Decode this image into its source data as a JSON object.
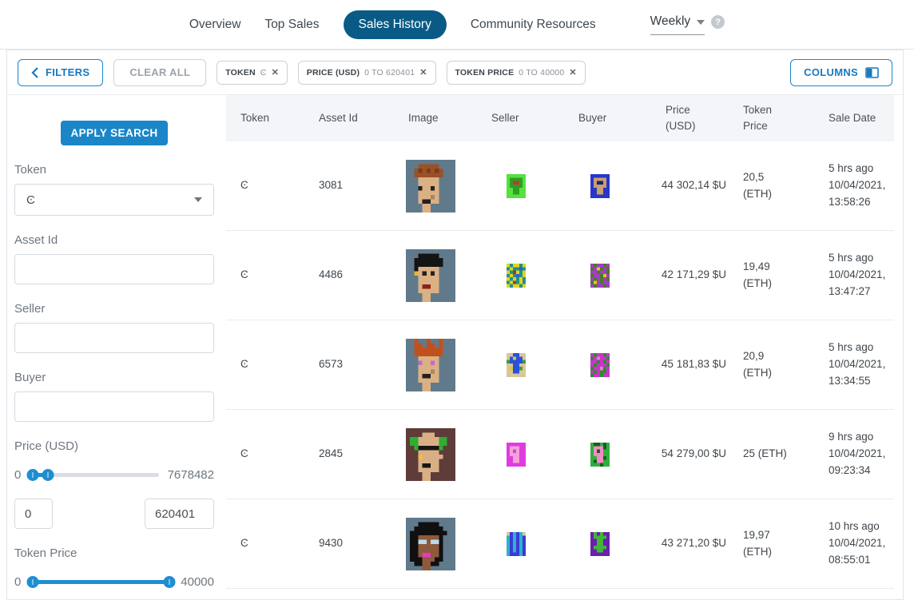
{
  "colors": {
    "accent_blue": "#1a86c8",
    "nav_active_bg": "#095b86",
    "slider_fill": "#1e8ed1",
    "table_header_bg": "#f3f5f9",
    "chip_border": "#ccd1d7"
  },
  "nav": {
    "items": [
      "Overview",
      "Top Sales",
      "Sales History",
      "Community Resources"
    ],
    "active_item": "Sales History",
    "period_label": "Weekly",
    "help_label": "?"
  },
  "toolbar": {
    "filters": "FILTERS",
    "clear_all": "CLEAR ALL",
    "columns": "COLUMNS",
    "chips": [
      {
        "label": "TOKEN",
        "value": "Ͼ",
        "close": "✕"
      },
      {
        "label": "PRICE (USD)",
        "value": "0 TO 620401",
        "close": "✕"
      },
      {
        "label": "TOKEN PRICE",
        "value": "0 TO 40000",
        "close": "✕"
      }
    ]
  },
  "sidebar": {
    "apply": "APPLY SEARCH",
    "token": {
      "label": "Token",
      "value": "Ͼ"
    },
    "asset_id": {
      "label": "Asset Id",
      "value": ""
    },
    "seller": {
      "label": "Seller",
      "value": ""
    },
    "buyer": {
      "label": "Buyer",
      "value": ""
    },
    "price_usd": {
      "label": "Price (USD)",
      "min": "0",
      "max": "7678482",
      "from": "0",
      "to": "620401"
    },
    "token_price": {
      "label": "Token Price",
      "min": "0",
      "max": "40000"
    }
  },
  "table": {
    "headers": [
      "Token",
      "Asset Id",
      "Image",
      "Seller",
      "Buyer",
      "Price (USD)",
      "Token Price",
      "Sale Date"
    ],
    "rows": [
      {
        "token": "Ͼ",
        "asset_id": "3081",
        "price_usd": "44 302,14 $U",
        "token_price": "20,5 (ETH)",
        "sale_date": "5 hrs ago 10/04/2021, 13:58:26"
      },
      {
        "token": "Ͼ",
        "asset_id": "4486",
        "price_usd": "42 171,29 $U",
        "token_price": "19,49 (ETH)",
        "sale_date": "5 hrs ago 10/04/2021, 13:47:27"
      },
      {
        "token": "Ͼ",
        "asset_id": "6573",
        "price_usd": "45 181,83 $U",
        "token_price": "20,9 (ETH)",
        "sale_date": "5 hrs ago 10/04/2021, 13:34:55"
      },
      {
        "token": "Ͼ",
        "asset_id": "2845",
        "price_usd": "54 279,00 $U",
        "token_price": "25 (ETH)",
        "sale_date": "9 hrs ago 10/04/2021, 09:23:34"
      },
      {
        "token": "Ͼ",
        "asset_id": "9430",
        "price_usd": "43 271,20 $U",
        "token_price": "19,97 (ETH)",
        "sale_date": "10 hrs ago 10/04/2021, 08:55:01"
      }
    ]
  },
  "art": {
    "punk_3081": {
      "palette": {
        "b": "#607a8c",
        "o": "#9a5126",
        "d": "#7c3c1a",
        "s": "#dbb184",
        "k": "#232020",
        "n": "#a9875f"
      },
      "rows": [
        "bbbbbbbbbbbb",
        "bbbooooobbbb",
        "bbodododobbb",
        "bbooooooobbb",
        "bbbsssssbbbb",
        "bbbsssssbbbb",
        "bbbkssksbbbb",
        "bbbsssssbbbb",
        "bbbsssnsbbbb",
        "bbbskkssbbbb",
        "bbbbssbbbbbb",
        "bbbbssbbbbbb"
      ]
    },
    "punk_4486": {
      "palette": {
        "b": "#607a8c",
        "h": "#141414",
        "s": "#dbb184",
        "r": "#8e2218",
        "g": "#e0b63a",
        "k": "#232020"
      },
      "rows": [
        "bbbbbbbbbbbb",
        "bbbhhhhhbbbb",
        "bbhhhhhhhbbb",
        "bbhhhhhhhbbb",
        "bbhsssssbbbb",
        "bbgsksksbbbb",
        "bbbsssssbbbb",
        "bbbsssssbbbb",
        "bbbsrrssbbbb",
        "bbbsssssbbbb",
        "bbbbssbbbbbb",
        "bbbbssbbbbbb"
      ]
    },
    "punk_6573": {
      "palette": {
        "b": "#607a8c",
        "o": "#c0511f",
        "s": "#dbb184",
        "p": "#c469c9",
        "k": "#232020",
        "n": "#a9875f"
      },
      "rows": [
        "bbobbobbobbb",
        "bbooboobobbb",
        "bbooooooobbb",
        "bbooooooobbb",
        "bbbsssssbbbb",
        "bbbpsspsbbbb",
        "bbbsssssbbbb",
        "bbbsssnsbbbb",
        "bbbskkssbbbb",
        "bbbsssssbbbb",
        "bbbbssbbbbbb",
        "bbbbssbbbbbb"
      ]
    },
    "punk_2845": {
      "palette": {
        "m": "#5e3c3a",
        "g": "#2fae2f",
        "s": "#d9b085",
        "k": "#161616",
        "y": "#e8c33a"
      },
      "rows": [
        "mmmmmmmmmmmm",
        "mmmmsssmmmmm",
        "mggsssssggmm",
        "mggsssssggmm",
        "mmgkkkkkgmmm",
        "mmmsssssmmmm",
        "mmmysssssmmm",
        "mmmsssssmmmm",
        "mmmskkssmmmm",
        "mmmsssssmmmm",
        "mmmmssmmmmmm",
        "mmmmssmmmmmm"
      ]
    },
    "punk_9430": {
      "palette": {
        "b": "#607a8c",
        "h": "#101010",
        "f": "#8d5a3c",
        "e": "#b8dcea",
        "p": "#e23bc8"
      },
      "rows": [
        "bbbbbbbbbbbb",
        "bbbhhhhhbbbb",
        "bbhhhhhhhbbb",
        "bhhhhhhhhhbb",
        "bhhfffffhbbb",
        "bhheefeehbbb",
        "bhhfffffhbbb",
        "bhhfffffhbbb",
        "bhhfppffhbbb",
        "bhhhfffhhbbb",
        "bbhhffhhbbbb",
        "bbbbffbbbbbb"
      ]
    },
    "seller_1": {
      "palette": {
        "a": "#55e23c",
        "d": "#2f9e28",
        "r": "#c03a28"
      },
      "rows": [
        "aaaaaa",
        "adddda",
        "adrrda",
        "adddda",
        "aaddaa",
        "aaddaa",
        "aaaaaa"
      ]
    },
    "buyer_1": {
      "palette": {
        "u": "#2a35cc",
        "t": "#c9a06a",
        "d": "#18217e"
      },
      "rows": [
        "uuuuuu",
        "uttttu",
        "utddtu",
        "uttttu",
        "uuttuu",
        "uuttuu",
        "uuuuuu"
      ]
    },
    "seller_2": {
      "palette": {
        "y": "#ded61f",
        "c": "#23908e",
        "r": "#b33030",
        "u": "#2a62c9"
      },
      "rows": [
        "ycyycy",
        "cyccuc",
        "ycrycy",
        "cycucy",
        "ycycyc",
        "cyrcyc",
        "ycyycy"
      ]
    },
    "buyer_2": {
      "palette": {
        "p": "#a63bc9",
        "g": "#4a7a22",
        "y": "#d6c92e"
      },
      "rows": [
        "pgppgp",
        "gpygpg",
        "ppgppg",
        "gppgyp",
        "pgpgpg",
        "gypgpp",
        "pgppgp"
      ]
    },
    "seller_3": {
      "palette": {
        "t": "#d9c79a",
        "u": "#2a52d9",
        "g": "#3a9e3a",
        "y": "#ddc83a"
      },
      "rows": [
        "ttuutt",
        "tuyuut",
        "guuuug",
        "ttuutt",
        "tyuugt",
        "ttuutt",
        "tttttt"
      ]
    },
    "buyer_3": {
      "palette": {
        "m": "#cc33cc",
        "g": "#2f8a2f",
        "p": "#e87cc9"
      },
      "rows": [
        "mgmmgm",
        "gmpmmg",
        "mmgmgm",
        "mgmmmg",
        "gmmpgm",
        "mgmggm",
        "gmmgmm"
      ]
    },
    "seller_4": {
      "palette": {
        "m": "#e03be0",
        "p": "#f2a3d5"
      },
      "rows": [
        "mmmmmm",
        "mpppmm",
        "mpmpmm",
        "mpppmm",
        "mmppmm",
        "mmppmm",
        "mmmmmm"
      ]
    },
    "buyer_4": {
      "palette": {
        "g": "#2fae3f",
        "p": "#f08cc3",
        "d": "#14611c"
      },
      "rows": [
        "gddgdg",
        "gpppdg",
        "gpdpgg",
        "gpppgg",
        "ggppdg",
        "gdppgg",
        "gggdgg"
      ]
    },
    "seller_5": {
      "palette": {
        "u": "#3a3ad9",
        "c": "#2fb3c9",
        "t": "#d9c79a"
      },
      "rows": [
        "tucuct",
        "cucucu",
        "cucucu",
        "cucucu",
        "cucucu",
        "cucucu",
        "cuuucu"
      ]
    },
    "buyer_5": {
      "palette": {
        "v": "#6a1fae",
        "g": "#44b33c",
        "d": "#2a7a2a"
      },
      "rows": [
        "vgvgvv",
        "vggggv",
        "vvggvv",
        "vvggvv",
        "vggggv",
        "vvggvv",
        "vvvvvv"
      ]
    }
  }
}
